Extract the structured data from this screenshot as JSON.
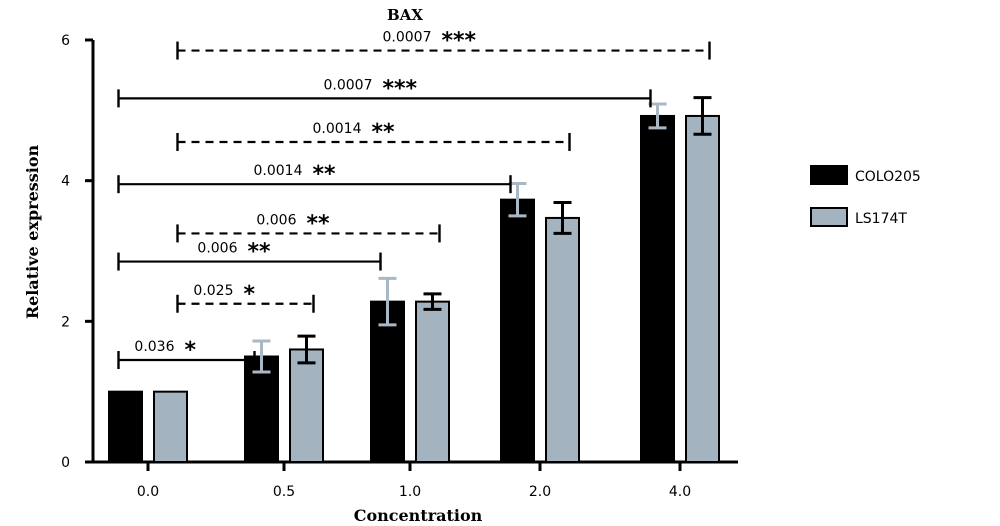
{
  "chart_data": {
    "type": "bar",
    "title": "BAX",
    "xlabel": "Concentration",
    "ylabel": "Relative expression",
    "categories": [
      "0.0",
      "0.5",
      "1.0",
      "2.0",
      "4.0"
    ],
    "ylim": [
      0,
      6
    ],
    "yticks": [
      0,
      2,
      4,
      6
    ],
    "series": [
      {
        "name": "COLO205",
        "color": "#000000",
        "values": [
          1.0,
          1.5,
          2.28,
          3.73,
          4.92
        ],
        "errors": [
          0,
          0.22,
          0.33,
          0.23,
          0.17
        ],
        "error_color": "#a9b8c4"
      },
      {
        "name": "LS174T",
        "color": "#a3b3bf",
        "values": [
          1.0,
          1.6,
          2.28,
          3.47,
          4.92
        ],
        "errors": [
          0,
          0.19,
          0.11,
          0.22,
          0.26
        ],
        "error_color": "#000000"
      }
    ],
    "legend_position": "right",
    "grid": false,
    "annotations": [
      {
        "from_cat": 0,
        "to_cat": 1,
        "series": "COLO205",
        "y": 1.45,
        "style": "solid",
        "p": "0.036",
        "stars": "*"
      },
      {
        "from_cat": 0,
        "to_cat": 1,
        "series": "LS174T",
        "y": 2.25,
        "style": "dashed",
        "p": "0.025",
        "stars": "*"
      },
      {
        "from_cat": 0,
        "to_cat": 2,
        "series": "COLO205",
        "y": 2.85,
        "style": "solid",
        "p": "0.006",
        "stars": "**"
      },
      {
        "from_cat": 0,
        "to_cat": 2,
        "series": "LS174T",
        "y": 3.25,
        "style": "dashed",
        "p": "0.006",
        "stars": "**"
      },
      {
        "from_cat": 0,
        "to_cat": 3,
        "series": "COLO205",
        "y": 3.95,
        "style": "solid",
        "p": "0.0014",
        "stars": "**"
      },
      {
        "from_cat": 0,
        "to_cat": 3,
        "series": "LS174T",
        "y": 4.55,
        "style": "dashed",
        "p": "0.0014",
        "stars": "**"
      },
      {
        "from_cat": 0,
        "to_cat": 4,
        "series": "COLO205",
        "y": 5.17,
        "style": "solid",
        "p": "0.0007",
        "stars": "***"
      },
      {
        "from_cat": 0,
        "to_cat": 4,
        "series": "LS174T",
        "y": 5.85,
        "style": "dashed",
        "p": "0.0007",
        "stars": "***"
      }
    ]
  }
}
